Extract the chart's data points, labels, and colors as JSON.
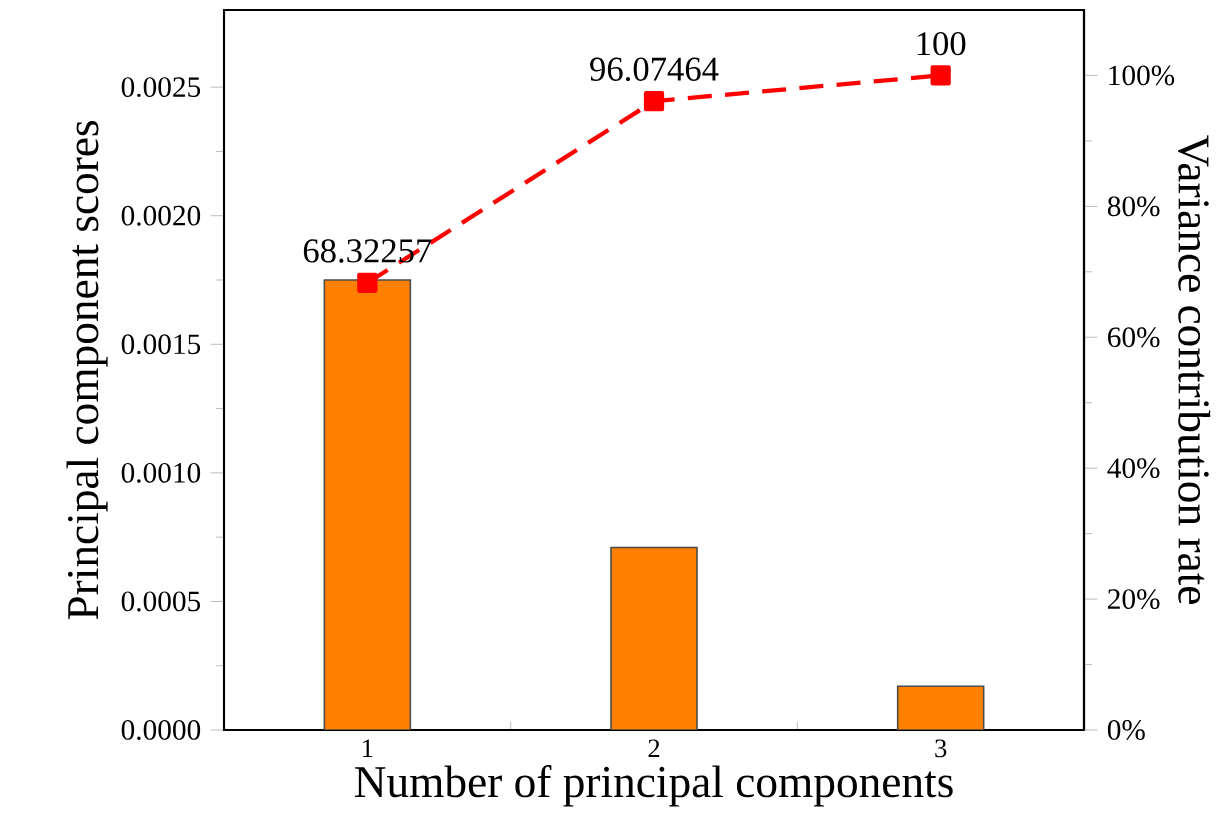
{
  "chart_data": {
    "type": "bar",
    "xlabel": "Number of principal components",
    "ylabel": "Principal component scores",
    "y2label": "Variance contribution rate",
    "categories": [
      "1",
      "2",
      "3"
    ],
    "series": [
      {
        "color": "#ff8000",
        "values": [
          0.00175,
          0.00071,
          0.00017
        ]
      },
      {
        "type": "line",
        "axis": "y2",
        "color": "#ff0000",
        "marker": "square",
        "line_style": "dashed",
        "values": [
          68.32257,
          96.07464,
          100
        ],
        "value_labels": [
          "68.32257",
          "96.07464",
          "100"
        ]
      }
    ],
    "ylim": [
      0,
      0.0028
    ],
    "yticks": [
      {
        "value": 0,
        "label": "0.0000"
      },
      {
        "value": 0.0005,
        "label": "0.0005"
      },
      {
        "value": 0.001,
        "label": "0.0010"
      },
      {
        "value": 0.0015,
        "label": "0.0015"
      },
      {
        "value": 0.002,
        "label": "0.0020"
      },
      {
        "value": 0.0025,
        "label": "0.0025"
      }
    ],
    "y2lim": [
      0,
      110
    ],
    "y2ticks": [
      {
        "value": 0,
        "label": "0%"
      },
      {
        "value": 20,
        "label": "20%"
      },
      {
        "value": 40,
        "label": "40%"
      },
      {
        "value": 60,
        "label": "60%"
      },
      {
        "value": 80,
        "label": "80%"
      },
      {
        "value": 100,
        "label": "100%"
      }
    ]
  }
}
